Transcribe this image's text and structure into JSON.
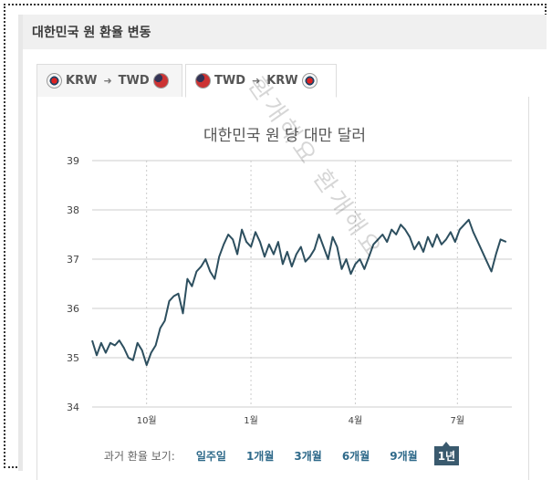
{
  "panel": {
    "title": "대한민국 원 환율 변동"
  },
  "tabs": [
    {
      "from": "KRW",
      "to": "TWD",
      "from_flag": "flag-korea-icon",
      "to_flag": "flag-taiwan-icon",
      "active": false
    },
    {
      "from": "TWD",
      "to": "KRW",
      "from_flag": "flag-taiwan-icon",
      "to_flag": "flag-korea-icon",
      "active": true
    }
  ],
  "watermark": "환개해요 환개해요",
  "range": {
    "label": "과거 환율 보기:",
    "options": [
      "일주일",
      "1개월",
      "3개월",
      "6개월",
      "9개월",
      "1년"
    ],
    "selected": "1년"
  },
  "chart_data": {
    "type": "line",
    "title": "대한민국 원 당 대만 달러",
    "xlabel": "",
    "ylabel": "",
    "ylim": [
      34,
      39
    ],
    "y_ticks": [
      "39",
      "38",
      "37",
      "36",
      "35",
      "34"
    ],
    "x_ticks": [
      "10월",
      "1월",
      "4월",
      "7월"
    ],
    "grid": true,
    "series": [
      {
        "color": "#2d4f5f",
        "x": [
          0,
          4,
          8,
          12,
          16,
          20,
          24,
          28,
          32,
          36,
          40,
          44,
          48,
          52,
          56,
          60,
          64,
          68,
          72,
          76,
          80,
          84,
          88,
          92,
          96,
          100,
          104,
          108,
          112,
          116,
          120,
          124,
          128,
          132,
          136,
          140,
          144,
          148,
          152,
          156,
          160,
          164,
          168,
          172,
          176,
          180,
          184,
          188,
          192,
          196,
          200,
          204,
          208,
          212,
          216,
          220,
          224,
          228,
          232,
          236,
          240,
          244,
          248,
          252,
          256,
          260,
          264,
          268,
          272,
          276,
          280,
          284,
          288,
          292,
          296,
          300,
          304,
          308,
          312,
          316,
          320,
          324,
          328,
          332,
          336,
          340,
          344,
          348,
          352,
          356,
          360,
          365
        ],
        "values": [
          35.35,
          35.05,
          35.3,
          35.1,
          35.3,
          35.25,
          35.35,
          35.2,
          35.0,
          34.95,
          35.3,
          35.15,
          34.85,
          35.1,
          35.25,
          35.6,
          35.75,
          36.15,
          36.25,
          36.3,
          35.9,
          36.6,
          36.45,
          36.75,
          36.85,
          37.0,
          36.75,
          36.6,
          37.05,
          37.3,
          37.5,
          37.4,
          37.1,
          37.6,
          37.35,
          37.25,
          37.55,
          37.35,
          37.05,
          37.3,
          37.1,
          37.35,
          36.9,
          37.15,
          36.85,
          37.1,
          37.25,
          36.95,
          37.05,
          37.2,
          37.5,
          37.25,
          37.0,
          37.45,
          37.25,
          36.8,
          37.0,
          36.7,
          36.9,
          37.0,
          36.8,
          37.05,
          37.3,
          37.4,
          37.5,
          37.35,
          37.6,
          37.5,
          37.7,
          37.6,
          37.45,
          37.2,
          37.35,
          37.15,
          37.45,
          37.25,
          37.5,
          37.3,
          37.4,
          37.55,
          37.35,
          37.6,
          37.7,
          37.8,
          37.55,
          37.35,
          37.15,
          36.95,
          36.75,
          37.1,
          37.4,
          37.35
        ]
      }
    ],
    "x_tick_positions": [
      48,
      140,
      232,
      322
    ],
    "x_range": [
      0,
      370
    ]
  }
}
